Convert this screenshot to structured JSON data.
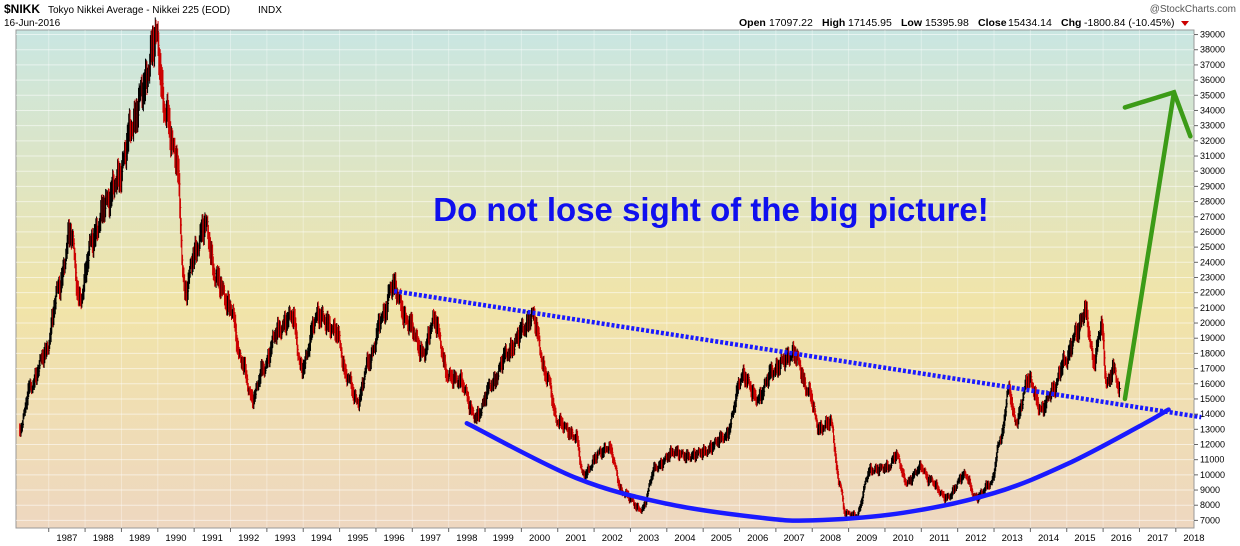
{
  "header": {
    "symbol": "$NIKK",
    "name": "Tokyo Nikkei Average - Nikkei 225 (EOD)",
    "exchange": "INDX",
    "date": "16-Jun-2016",
    "watermark": "@StockCharts.com",
    "open_label": "Open",
    "open": "17097.22",
    "high_label": "High",
    "high": "17145.95",
    "low_label": "Low",
    "low": "15395.98",
    "close_label": "Close",
    "close": "15434.14",
    "chg_label": "Chg",
    "chg": "-1800.84 (-10.45%)"
  },
  "annotation": "Do not lose sight of the big picture!",
  "colors": {
    "bg_top": "#c9e6e2",
    "bg_mid": "#f1e4a8",
    "bg_bottom": "#eed7c0",
    "up": "#000000",
    "down": "#cc0000",
    "trend": "#1a1aff",
    "arrow": "#3c9b17",
    "text_annotation": "#1010ee",
    "chg_down": "#cc0000"
  },
  "chart_data": {
    "type": "ohlc",
    "x_ticks": [
      "1987",
      "1988",
      "1989",
      "1990",
      "1991",
      "1992",
      "1993",
      "1994",
      "1995",
      "1996",
      "1997",
      "1998",
      "1999",
      "2000",
      "2001",
      "2002",
      "2003",
      "2004",
      "2005",
      "2006",
      "2007",
      "2008",
      "2009",
      "2010",
      "2011",
      "2012",
      "2013",
      "2014",
      "2015",
      "2016",
      "2017",
      "2018"
    ],
    "y_ticks": [
      7000,
      8000,
      9000,
      10000,
      11000,
      12000,
      13000,
      14000,
      15000,
      16000,
      17000,
      18000,
      19000,
      20000,
      21000,
      22000,
      23000,
      24000,
      25000,
      26000,
      27000,
      28000,
      29000,
      30000,
      31000,
      32000,
      33000,
      34000,
      35000,
      36000,
      37000,
      38000,
      39000
    ],
    "xlim": [
      1986.1,
      2018.5
    ],
    "ylim": [
      6500,
      39300
    ],
    "price_path": [
      [
        1986.2,
        13000
      ],
      [
        1986.5,
        15800
      ],
      [
        1986.9,
        18000
      ],
      [
        1987.3,
        22500
      ],
      [
        1987.6,
        26000
      ],
      [
        1987.85,
        21500
      ],
      [
        1988.2,
        25500
      ],
      [
        1988.6,
        28000
      ],
      [
        1988.9,
        29500
      ],
      [
        1989.3,
        33000
      ],
      [
        1989.6,
        35500
      ],
      [
        1989.95,
        38900
      ],
      [
        1990.2,
        34000
      ],
      [
        1990.5,
        31000
      ],
      [
        1990.75,
        22000
      ],
      [
        1991.0,
        24500
      ],
      [
        1991.3,
        26500
      ],
      [
        1991.6,
        23000
      ],
      [
        1992.0,
        21000
      ],
      [
        1992.3,
        17500
      ],
      [
        1992.6,
        15000
      ],
      [
        1992.9,
        17000
      ],
      [
        1993.3,
        19500
      ],
      [
        1993.7,
        20500
      ],
      [
        1993.95,
        17000
      ],
      [
        1994.4,
        20500
      ],
      [
        1994.9,
        19500
      ],
      [
        1995.2,
        16500
      ],
      [
        1995.5,
        14800
      ],
      [
        1995.8,
        17500
      ],
      [
        1996.2,
        20500
      ],
      [
        1996.45,
        22500
      ],
      [
        1996.9,
        20000
      ],
      [
        1997.3,
        18000
      ],
      [
        1997.6,
        20200
      ],
      [
        1998.0,
        16500
      ],
      [
        1998.3,
        16200
      ],
      [
        1998.75,
        13800
      ],
      [
        1999.2,
        16000
      ],
      [
        1999.6,
        18000
      ],
      [
        2000.1,
        19700
      ],
      [
        2000.3,
        20500
      ],
      [
        2000.7,
        16500
      ],
      [
        2001.0,
        13500
      ],
      [
        2001.5,
        12500
      ],
      [
        2001.7,
        10000
      ],
      [
        2002.2,
        11500
      ],
      [
        2002.4,
        11800
      ],
      [
        2002.8,
        8800
      ],
      [
        2003.3,
        7700
      ],
      [
        2003.7,
        10500
      ],
      [
        2004.2,
        11500
      ],
      [
        2004.6,
        11200
      ],
      [
        2005.0,
        11500
      ],
      [
        2005.6,
        12500
      ],
      [
        2006.1,
        16500
      ],
      [
        2006.5,
        15000
      ],
      [
        2006.9,
        16800
      ],
      [
        2007.3,
        17700
      ],
      [
        2007.5,
        18000
      ],
      [
        2007.9,
        15500
      ],
      [
        2008.2,
        13000
      ],
      [
        2008.5,
        13500
      ],
      [
        2008.75,
        9500
      ],
      [
        2008.9,
        7500
      ],
      [
        2009.2,
        7300
      ],
      [
        2009.6,
        10300
      ],
      [
        2010.1,
        10500
      ],
      [
        2010.3,
        11300
      ],
      [
        2010.6,
        9500
      ],
      [
        2011.0,
        10500
      ],
      [
        2011.2,
        9700
      ],
      [
        2011.7,
        8500
      ],
      [
        2012.2,
        10000
      ],
      [
        2012.5,
        8500
      ],
      [
        2012.9,
        9400
      ],
      [
        2013.2,
        12500
      ],
      [
        2013.4,
        15600
      ],
      [
        2013.6,
        13500
      ],
      [
        2013.95,
        16300
      ],
      [
        2014.3,
        14300
      ],
      [
        2014.6,
        15500
      ],
      [
        2014.95,
        17500
      ],
      [
        2015.3,
        19500
      ],
      [
        2015.5,
        20800
      ],
      [
        2015.75,
        17500
      ],
      [
        2015.95,
        19800
      ],
      [
        2016.1,
        16000
      ],
      [
        2016.3,
        17000
      ],
      [
        2016.45,
        15434
      ]
    ],
    "overlays": [
      {
        "type": "dotted-line",
        "points": [
          [
            1996.5,
            22100
          ],
          [
            2018.7,
            13800
          ]
        ]
      },
      {
        "type": "curve",
        "points": [
          [
            1998.5,
            13400
          ],
          [
            2001.5,
            9800
          ],
          [
            2004.0,
            8100
          ],
          [
            2006.5,
            7200
          ],
          [
            2008.0,
            7000
          ],
          [
            2010.5,
            7500
          ],
          [
            2013.0,
            8800
          ],
          [
            2015.0,
            10700
          ],
          [
            2017.0,
            13200
          ],
          [
            2017.8,
            14300
          ]
        ]
      },
      {
        "type": "arrow",
        "points": [
          [
            2016.6,
            15000
          ],
          [
            2017.95,
            35200
          ]
        ],
        "head": [
          [
            2016.6,
            34200
          ],
          [
            2017.95,
            35200
          ],
          [
            2018.4,
            32300
          ]
        ]
      }
    ]
  }
}
